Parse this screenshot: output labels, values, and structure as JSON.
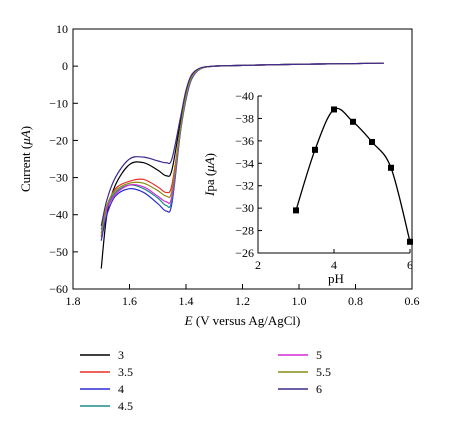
{
  "chart_data": [
    {
      "type": "line",
      "title": "",
      "xlabel_italic": "E",
      "xlabel_rest": " (V versus Ag/AgCl)",
      "ylabel_pre": "Current (",
      "ylabel_mu": "μA",
      "ylabel_post": ")",
      "xlim": [
        1.8,
        0.6
      ],
      "ylim": [
        -60,
        10
      ],
      "xticks": [
        1.8,
        1.6,
        1.4,
        1.2,
        1.0,
        0.8,
        0.6
      ],
      "yticks": [
        10,
        0,
        -10,
        -20,
        -30,
        -40,
        -50,
        -60
      ],
      "legend_position": "bottom",
      "series": [
        {
          "name": "3",
          "color": "#000000",
          "x": [
            1.7,
            1.68,
            1.65,
            1.6,
            1.55,
            1.5,
            1.47,
            1.45,
            1.42,
            1.4,
            1.38,
            1.35,
            1.3,
            1.2,
            1.0,
            0.8,
            0.7
          ],
          "y": [
            -54.5,
            -40,
            -32,
            -26.5,
            -26,
            -28,
            -29.5,
            -28,
            -15,
            -7,
            -2.5,
            -0.6,
            0,
            0.2,
            0.5,
            0.7,
            0.8
          ]
        },
        {
          "name": "3.5",
          "color": "#e8312a",
          "x": [
            1.7,
            1.68,
            1.65,
            1.6,
            1.55,
            1.5,
            1.47,
            1.45,
            1.42,
            1.4,
            1.38,
            1.35,
            1.3,
            1.2,
            1.0,
            0.8,
            0.7
          ],
          "y": [
            -46,
            -38,
            -33,
            -31,
            -30.5,
            -32.5,
            -34,
            -32,
            -17,
            -8,
            -3,
            -0.7,
            0,
            0.2,
            0.5,
            0.7,
            0.8
          ]
        },
        {
          "name": "4",
          "color": "#2b2bd6",
          "x": [
            1.7,
            1.68,
            1.65,
            1.6,
            1.55,
            1.5,
            1.47,
            1.45,
            1.42,
            1.4,
            1.38,
            1.35,
            1.3,
            1.2,
            1.0,
            0.8,
            0.7
          ],
          "y": [
            -47,
            -40,
            -35,
            -33,
            -34,
            -37,
            -39,
            -37,
            -18,
            -9,
            -3.5,
            -0.8,
            0,
            0.2,
            0.5,
            0.7,
            0.8
          ]
        },
        {
          "name": "4.5",
          "color": "#1d8c8c",
          "x": [
            1.7,
            1.68,
            1.65,
            1.6,
            1.55,
            1.5,
            1.47,
            1.45,
            1.42,
            1.4,
            1.38,
            1.35,
            1.3,
            1.2,
            1.0,
            0.8,
            0.7
          ],
          "y": [
            -44,
            -38,
            -34,
            -32,
            -33,
            -35.5,
            -37.5,
            -36,
            -17.5,
            -8.5,
            -3.2,
            -0.7,
            0,
            0.2,
            0.5,
            0.7,
            0.8
          ]
        },
        {
          "name": "5",
          "color": "#d62ad6",
          "x": [
            1.7,
            1.68,
            1.65,
            1.6,
            1.55,
            1.5,
            1.47,
            1.45,
            1.42,
            1.4,
            1.38,
            1.35,
            1.3,
            1.2,
            1.0,
            0.8,
            0.7
          ],
          "y": [
            -45,
            -38.5,
            -34.5,
            -32,
            -32.5,
            -35,
            -36.5,
            -35,
            -17,
            -8.2,
            -3,
            -0.7,
            0,
            0.2,
            0.5,
            0.7,
            0.8
          ]
        },
        {
          "name": "5.5",
          "color": "#8c8c14",
          "x": [
            1.7,
            1.68,
            1.65,
            1.6,
            1.55,
            1.5,
            1.47,
            1.45,
            1.42,
            1.4,
            1.38,
            1.35,
            1.3,
            1.2,
            1.0,
            0.8,
            0.7
          ],
          "y": [
            -45.5,
            -37.5,
            -33.5,
            -31.5,
            -31.5,
            -33.5,
            -35,
            -33.5,
            -17,
            -8,
            -3,
            -0.7,
            0,
            0.2,
            0.5,
            0.7,
            0.8
          ]
        },
        {
          "name": "6",
          "color": "#3c2a8c",
          "x": [
            1.7,
            1.68,
            1.65,
            1.6,
            1.55,
            1.5,
            1.47,
            1.45,
            1.42,
            1.4,
            1.38,
            1.35,
            1.3,
            1.2,
            1.0,
            0.8,
            0.7
          ],
          "y": [
            -43,
            -36,
            -30,
            -25,
            -24.5,
            -25.5,
            -26,
            -25,
            -14,
            -6.5,
            -2.3,
            -0.5,
            0,
            0.2,
            0.5,
            0.7,
            0.8
          ]
        }
      ]
    },
    {
      "type": "scatter",
      "title": "",
      "xlabel": "pH",
      "ylabel_italic": "I",
      "ylabel_rest": "pa (",
      "ylabel_mu": "μA",
      "ylabel_post": ")",
      "xlim": [
        2,
        6
      ],
      "ylim": [
        -26,
        -40
      ],
      "xticks": [
        2,
        4,
        6
      ],
      "yticks": [
        -40,
        -38,
        -36,
        -34,
        -32,
        -30,
        -28,
        -26
      ],
      "color": "#000000",
      "x": [
        3,
        3.5,
        4,
        4.5,
        5,
        5.5,
        6
      ],
      "y": [
        -29.8,
        -35.2,
        -38.8,
        -37.7,
        -35.9,
        -33.6,
        -27
      ]
    }
  ]
}
